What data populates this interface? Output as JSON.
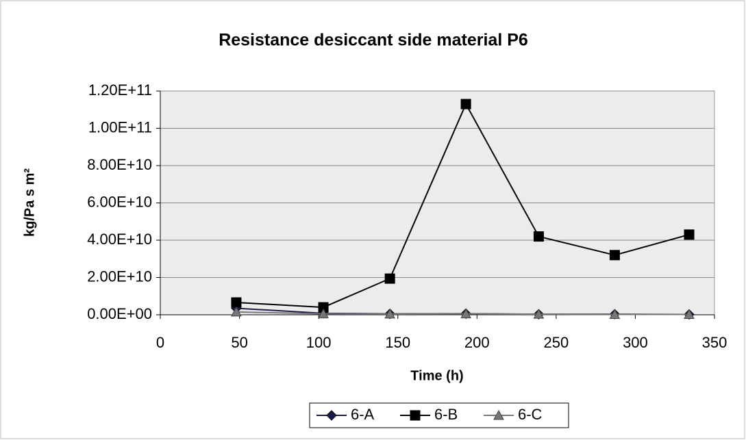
{
  "chart_data": {
    "type": "line",
    "title": "Resistance desiccant side material P6",
    "x_label": "Time (h)",
    "y_label": "kg/Pa s m²",
    "x": [
      48,
      103,
      145,
      193,
      239,
      287,
      334
    ],
    "series": [
      {
        "name": "6-A",
        "color": "#1a1a4a",
        "marker": "diamond",
        "values": [
          3500000000,
          800000000,
          500000000,
          600000000,
          300000000,
          300000000,
          200000000
        ]
      },
      {
        "name": "6-B",
        "color": "#000000",
        "marker": "square",
        "values": [
          6600000000,
          4000000000,
          19400000000,
          113000000000,
          42000000000,
          32000000000,
          43000000000
        ]
      },
      {
        "name": "6-C",
        "color": "#777777",
        "marker": "triangle",
        "values": [
          1500000000,
          500000000,
          400000000,
          500000000,
          300000000,
          200000000,
          200000000
        ]
      }
    ],
    "xlim": [
      0,
      350
    ],
    "xticks": [
      0,
      50,
      100,
      150,
      200,
      250,
      300,
      350
    ],
    "ylim": [
      0,
      120000000000
    ],
    "yticks": [
      {
        "value": 0,
        "label": "0.00E+00"
      },
      {
        "value": 20000000000,
        "label": "2.00E+10"
      },
      {
        "value": 40000000000,
        "label": "4.00E+10"
      },
      {
        "value": 60000000000,
        "label": "6.00E+10"
      },
      {
        "value": 80000000000,
        "label": "8.00E+10"
      },
      {
        "value": 100000000000,
        "label": "1.00E+11"
      },
      {
        "value": 120000000000,
        "label": "1.20E+11"
      }
    ],
    "grid": true,
    "legend": "bottom"
  }
}
